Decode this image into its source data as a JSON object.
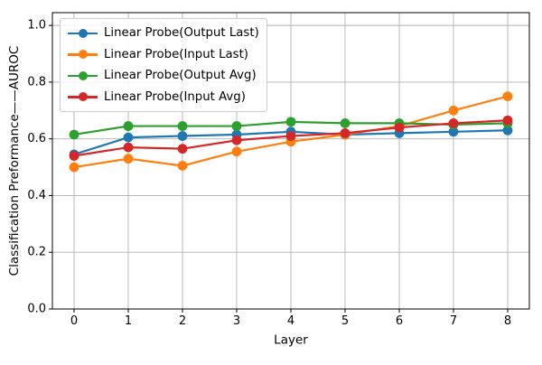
{
  "chart_data": {
    "type": "line",
    "title": "",
    "xlabel": "Layer",
    "ylabel": "Classification Preformance——AUROC",
    "x": [
      0,
      1,
      2,
      3,
      4,
      5,
      6,
      7,
      8
    ],
    "xtick_labels": [
      "0",
      "1",
      "2",
      "3",
      "4",
      "5",
      "6",
      "7",
      "8"
    ],
    "ytick_values": [
      0.0,
      0.2,
      0.4,
      0.6,
      0.8,
      1.0
    ],
    "ytick_labels": [
      "0.0",
      "0.2",
      "0.4",
      "0.6",
      "0.8",
      "1.0"
    ],
    "xlim": [
      -0.4,
      8.4
    ],
    "ylim": [
      0,
      1.045
    ],
    "grid": true,
    "grid_color": "#b0b0b0",
    "legend_position": "upper left",
    "series": [
      {
        "name": "Linear Probe(Output Last)",
        "color": "#1f77b4",
        "values": [
          0.545,
          0.605,
          0.61,
          0.615,
          0.625,
          0.615,
          0.62,
          0.625,
          0.63
        ]
      },
      {
        "name": "Linear Probe(Input Last)",
        "color": "#ff7f0e",
        "values": [
          0.5,
          0.53,
          0.505,
          0.555,
          0.59,
          0.615,
          0.645,
          0.7,
          0.75
        ]
      },
      {
        "name": "Linear Probe(Output Avg)",
        "color": "#2ca02c",
        "values": [
          0.615,
          0.645,
          0.645,
          0.645,
          0.66,
          0.655,
          0.655,
          0.65,
          0.655
        ]
      },
      {
        "name": "Linear Probe(Input Avg)",
        "color": "#d62728",
        "values": [
          0.54,
          0.57,
          0.565,
          0.595,
          0.61,
          0.62,
          0.64,
          0.655,
          0.665
        ]
      }
    ]
  }
}
